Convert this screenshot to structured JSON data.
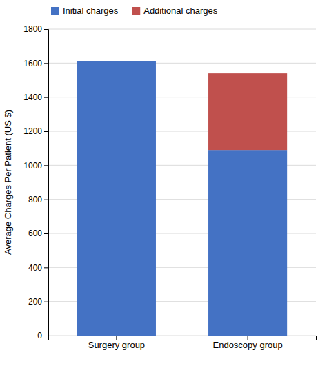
{
  "chart_data": {
    "type": "bar",
    "stacked": true,
    "categories": [
      "Surgery group",
      "Endoscopy group"
    ],
    "series": [
      {
        "name": "Initial charges",
        "color": "#4472C4",
        "values": [
          1610,
          1090
        ]
      },
      {
        "name": "Additional charges",
        "color": "#C0504D",
        "values": [
          0,
          450
        ]
      }
    ],
    "ylabel": "Average Charges Per Patient (US $)",
    "ylim": [
      0,
      1800
    ],
    "yticks": [
      0,
      200,
      400,
      600,
      800,
      1000,
      1200,
      1400,
      1600,
      1800
    ],
    "grid": true,
    "legend": "upper left"
  }
}
